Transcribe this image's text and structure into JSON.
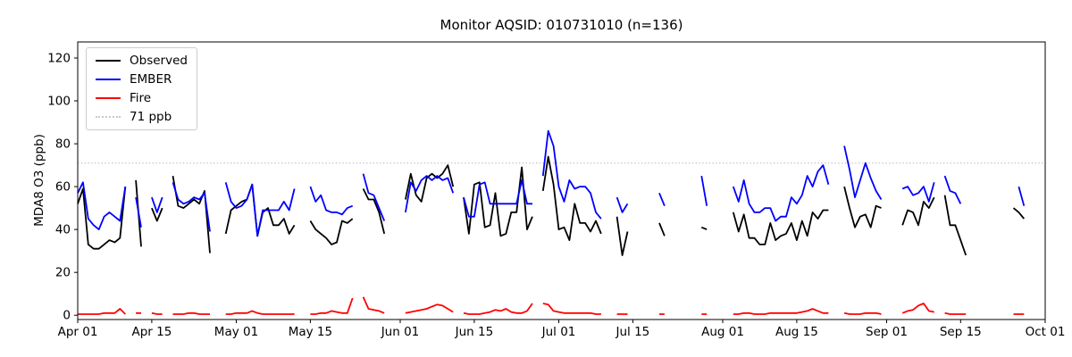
{
  "chart_data": {
    "type": "line",
    "title": "Monitor AQSID: 010731010 (n=136)",
    "ylabel": "MDA8 O3 (ppb)",
    "n_observations": 136,
    "x_unit": "days since Apr 01",
    "x_range_days": 183,
    "ylim": [
      -2,
      127.5
    ],
    "y_ticks": [
      0,
      20,
      40,
      60,
      80,
      100,
      120
    ],
    "x_tick_days": [
      0,
      14,
      30,
      44,
      61,
      75,
      91,
      105,
      122,
      136,
      153,
      167,
      183
    ],
    "x_tick_labels": [
      "Apr 01",
      "Apr 15",
      "May 01",
      "May 15",
      "Jun 01",
      "Jun 15",
      "Jul 01",
      "Jul 15",
      "Aug 01",
      "Aug 15",
      "Sep 01",
      "Sep 15",
      "Oct 01"
    ],
    "grid": false,
    "legend_position": "upper left",
    "threshold": {
      "value": 71,
      "label": "71 ppb",
      "color": "#c8c8c8",
      "style": "dotted"
    },
    "series": [
      {
        "id": "observed",
        "name": "Observed",
        "color": "#000000",
        "style": "solid",
        "values": [
          52,
          59,
          33,
          31,
          31,
          33,
          35,
          34,
          36,
          60,
          null,
          63,
          32,
          null,
          50,
          44,
          50,
          null,
          65,
          51,
          50,
          52,
          54,
          52,
          58,
          29,
          null,
          null,
          38,
          49,
          51,
          53,
          54,
          61,
          37,
          48,
          50,
          42,
          42,
          45,
          38,
          42,
          null,
          null,
          44,
          40,
          38,
          36,
          33,
          34,
          44,
          43,
          45,
          null,
          59,
          54,
          54,
          48,
          38,
          null,
          null,
          null,
          54,
          66,
          56,
          53,
          64,
          66,
          64,
          66,
          70,
          60,
          null,
          55,
          38,
          61,
          62,
          41,
          42,
          57,
          37,
          38,
          48,
          48,
          69,
          40,
          46,
          null,
          58,
          74,
          61,
          40,
          41,
          35,
          52,
          43,
          43,
          39,
          44,
          38,
          null,
          null,
          46,
          28,
          39,
          null,
          null,
          null,
          null,
          null,
          43,
          37,
          null,
          null,
          null,
          null,
          null,
          null,
          41,
          40,
          null,
          null,
          null,
          null,
          48,
          39,
          47,
          36,
          36,
          33,
          33,
          43,
          35,
          37,
          38,
          43,
          35,
          44,
          37,
          48,
          45,
          49,
          49,
          null,
          null,
          60,
          50,
          41,
          46,
          47,
          41,
          51,
          50,
          null,
          null,
          null,
          42,
          49,
          48,
          42,
          53,
          50,
          55,
          null,
          56,
          42,
          42,
          35,
          28,
          null,
          null,
          null,
          null,
          null,
          null,
          null,
          null,
          50,
          48,
          45,
          null,
          null,
          null
        ]
      },
      {
        "id": "ember",
        "name": "EMBER",
        "color": "#0000ff",
        "style": "solid",
        "values": [
          57,
          62,
          45,
          42,
          40,
          46,
          48,
          46,
          44,
          60,
          null,
          55,
          41,
          null,
          55,
          48,
          55,
          null,
          62,
          54,
          52,
          53,
          55,
          54,
          57,
          39,
          null,
          null,
          62,
          53,
          50,
          51,
          54,
          61,
          37,
          49,
          49,
          49,
          49,
          53,
          49,
          59,
          null,
          null,
          60,
          53,
          56,
          49,
          48,
          48,
          47,
          50,
          51,
          null,
          66,
          57,
          56,
          50,
          44,
          null,
          null,
          null,
          48,
          62,
          58,
          63,
          65,
          63,
          65,
          63,
          64,
          57,
          null,
          55,
          46,
          46,
          61,
          62,
          52,
          52,
          52,
          52,
          52,
          52,
          63,
          52,
          52,
          null,
          65,
          86,
          79,
          60,
          53,
          63,
          59,
          60,
          60,
          57,
          48,
          45,
          null,
          null,
          55,
          48,
          52,
          null,
          null,
          null,
          null,
          null,
          57,
          51,
          null,
          null,
          null,
          null,
          null,
          null,
          65,
          51,
          null,
          null,
          null,
          null,
          60,
          53,
          63,
          52,
          48,
          48,
          50,
          50,
          44,
          46,
          46,
          55,
          52,
          56,
          65,
          60,
          67,
          70,
          61,
          null,
          null,
          79,
          68,
          55,
          63,
          71,
          64,
          58,
          54,
          null,
          null,
          null,
          59,
          60,
          56,
          57,
          60,
          53,
          62,
          null,
          65,
          58,
          57,
          52,
          null,
          null,
          null,
          null,
          null,
          null,
          null,
          null,
          null,
          null,
          60,
          51,
          null,
          null,
          null
        ]
      },
      {
        "id": "fire",
        "name": "Fire",
        "color": "#ff0000",
        "style": "solid",
        "values": [
          0.5,
          0.5,
          0.5,
          0.5,
          0.5,
          1,
          1,
          1,
          3,
          0.5,
          null,
          1,
          1,
          null,
          1,
          0.5,
          0.5,
          null,
          0.5,
          0.5,
          0.5,
          1,
          1,
          0.5,
          0.5,
          0.5,
          null,
          null,
          0.5,
          0.5,
          1,
          1,
          1,
          2,
          1,
          0.5,
          0.5,
          0.5,
          0.5,
          0.5,
          0.5,
          0.5,
          null,
          null,
          0.5,
          0.5,
          1,
          1,
          2,
          1.5,
          1,
          1,
          8,
          null,
          8.5,
          3,
          2.5,
          2,
          1,
          null,
          null,
          null,
          1,
          1.5,
          2,
          2.5,
          3,
          4,
          5,
          4.5,
          3,
          1.5,
          null,
          1,
          0.5,
          0.5,
          0.5,
          1,
          1.5,
          2.5,
          2,
          3,
          1.5,
          1,
          1,
          2,
          5.5,
          null,
          5.5,
          5,
          2,
          1.5,
          1,
          1,
          1,
          1,
          1,
          1,
          0.5,
          0.5,
          null,
          null,
          0.5,
          0.5,
          0.5,
          null,
          null,
          null,
          null,
          null,
          0.5,
          0.5,
          null,
          null,
          null,
          null,
          null,
          null,
          0.5,
          0.5,
          null,
          null,
          null,
          null,
          0.5,
          0.5,
          1,
          1,
          0.5,
          0.5,
          0.5,
          1,
          1,
          1,
          1,
          1,
          1,
          1.5,
          2,
          3,
          2,
          1,
          1,
          null,
          null,
          1,
          0.5,
          0.5,
          0.5,
          1,
          1,
          1,
          0.5,
          null,
          null,
          null,
          1,
          2,
          2.5,
          4.5,
          5.5,
          2,
          1.5,
          null,
          1,
          0.5,
          0.5,
          0.5,
          0.5,
          null,
          null,
          null,
          null,
          null,
          null,
          null,
          null,
          0.5,
          0.5,
          0.5,
          null,
          null,
          null
        ]
      }
    ]
  }
}
